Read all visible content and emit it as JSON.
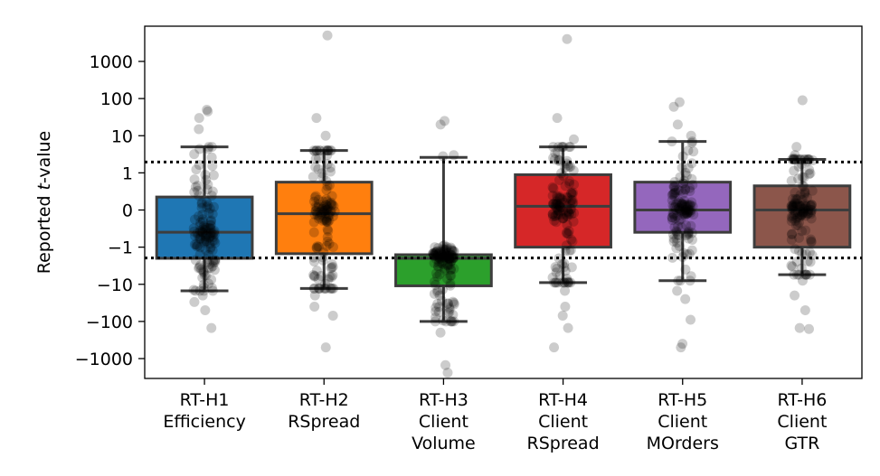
{
  "chart_data": {
    "type": "box",
    "title": "",
    "ylabel_parts": [
      "Reported ",
      "t",
      "-value"
    ],
    "yscale": "symlog",
    "ylim": [
      -2800,
      8000
    ],
    "yticks": [
      {
        "value": 1000,
        "label": "1000"
      },
      {
        "value": 100,
        "label": "100"
      },
      {
        "value": 10,
        "label": "10"
      },
      {
        "value": 1,
        "label": "1"
      },
      {
        "value": 0,
        "label": "0"
      },
      {
        "value": -1,
        "label": "−1"
      },
      {
        "value": -10,
        "label": "−10"
      },
      {
        "value": -100,
        "label": "−100"
      },
      {
        "value": -1000,
        "label": "−1000"
      }
    ],
    "reference_lines": [
      1.96,
      -1.96
    ],
    "categories": [
      {
        "lines": [
          "RT-H1",
          "Efficiency"
        ]
      },
      {
        "lines": [
          "RT-H2",
          "RSpread"
        ]
      },
      {
        "lines": [
          "RT-H3",
          "Client",
          "Volume"
        ]
      },
      {
        "lines": [
          "RT-H4",
          "Client",
          "RSpread"
        ]
      },
      {
        "lines": [
          "RT-H5",
          "Client",
          "MOrders"
        ]
      },
      {
        "lines": [
          "RT-H6",
          "Client",
          "GTR"
        ]
      }
    ],
    "boxes": [
      {
        "color": "#1f77b4",
        "whislo": -15,
        "q1": -2.0,
        "median": -0.6,
        "q3": 0.35,
        "whishi": 5.0,
        "outliers": [
          -20,
          -30,
          -50,
          -150,
          15,
          30,
          50,
          45
        ],
        "seed": 11
      },
      {
        "color": "#ff7f0e",
        "whislo": -13,
        "q1": -1.5,
        "median": -0.1,
        "q3": 0.75,
        "whishi": 4.0,
        "outliers": [
          -20,
          -40,
          -70,
          -500,
          10,
          30,
          5000
        ],
        "seed": 23
      },
      {
        "color": "#2ca02c",
        "whislo": -100,
        "q1": -11,
        "median": -2.0,
        "q3": -1.6,
        "whishi": 2.6,
        "outliers": [
          -200,
          -1500,
          -2400,
          2.8,
          3.0,
          20,
          25
        ],
        "seed": 37
      },
      {
        "color": "#d62728",
        "whislo": -9,
        "q1": -1.0,
        "median": 0.1,
        "q3": 0.95,
        "whishi": 5.0,
        "outliers": [
          -15,
          -40,
          -70,
          -150,
          -500,
          8,
          30,
          4000
        ],
        "seed": 41
      },
      {
        "color": "#9467bd",
        "whislo": -8,
        "q1": -0.6,
        "median": 0.0,
        "q3": 0.75,
        "whishi": 7.0,
        "outliers": [
          -15,
          -25,
          -90,
          -400,
          -500,
          10,
          20,
          60,
          80
        ],
        "seed": 53
      },
      {
        "color": "#8c564b",
        "whislo": -5.5,
        "q1": -1.0,
        "median": 0.0,
        "q3": 0.65,
        "whishi": 2.3,
        "outliers": [
          -8,
          -20,
          -50,
          -150,
          -160,
          2.5,
          3,
          5,
          90
        ],
        "seed": 67
      }
    ]
  }
}
